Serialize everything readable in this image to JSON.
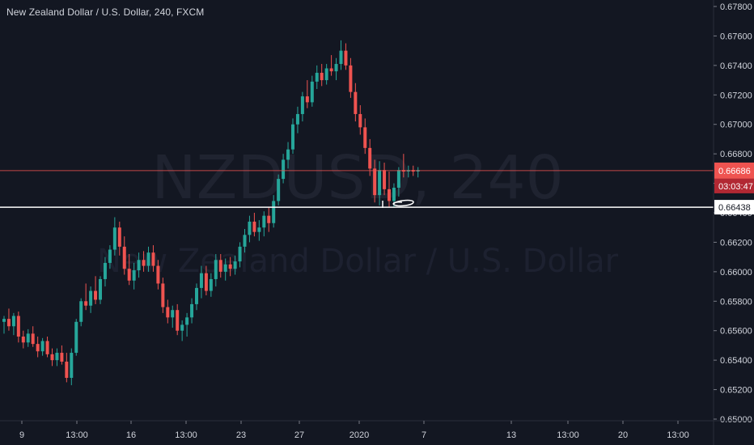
{
  "header": {
    "title": "New Zealand Dollar / U.S. Dollar, 240, FXCM"
  },
  "watermark": {
    "symbol_line": "NZDUSD, 240",
    "name_line": "New Zealand Dollar / U.S. Dollar"
  },
  "colors": {
    "background": "#131722",
    "up": "#26a69a",
    "down": "#ef5350",
    "price_line": "#ef5350",
    "level_line": "#ffffff",
    "text": "#d1d4dc"
  },
  "price_label": {
    "value": "0.66686",
    "countdown": "03:03:47"
  },
  "level_label": {
    "value": "0.66438"
  },
  "chart_data": {
    "type": "candlestick",
    "title": "New Zealand Dollar / U.S. Dollar, 240, FXCM",
    "ylim": [
      0.65,
      0.678
    ],
    "y_ticks": [
      "0.67800",
      "0.67600",
      "0.67400",
      "0.67200",
      "0.67000",
      "0.66800",
      "0.66600",
      "0.66400",
      "0.66200",
      "0.66000",
      "0.65800",
      "0.65600",
      "0.65400",
      "0.65200",
      "0.65000"
    ],
    "x_ticks": [
      "9",
      "13:00",
      "16",
      "13:00",
      "23",
      "27",
      "2020",
      "7",
      "13",
      "13:00",
      "20",
      "13:00"
    ],
    "current_price": 0.66686,
    "horizontal_level": 0.66438,
    "candles": [
      [
        0.6566,
        0.657,
        0.6558,
        0.6568
      ],
      [
        0.6568,
        0.6575,
        0.656,
        0.6563
      ],
      [
        0.6563,
        0.6572,
        0.6557,
        0.657
      ],
      [
        0.657,
        0.6573,
        0.6552,
        0.6556
      ],
      [
        0.6556,
        0.656,
        0.6548,
        0.6552
      ],
      [
        0.6552,
        0.6561,
        0.6549,
        0.6558
      ],
      [
        0.6558,
        0.6563,
        0.6549,
        0.6551
      ],
      [
        0.6551,
        0.6556,
        0.6542,
        0.6546
      ],
      [
        0.6546,
        0.6555,
        0.6543,
        0.6553
      ],
      [
        0.6553,
        0.6556,
        0.6542,
        0.6544
      ],
      [
        0.6544,
        0.6548,
        0.6536,
        0.654
      ],
      [
        0.654,
        0.6548,
        0.6536,
        0.6545
      ],
      [
        0.6545,
        0.655,
        0.6537,
        0.6539
      ],
      [
        0.6539,
        0.6545,
        0.6525,
        0.6528
      ],
      [
        0.6528,
        0.6548,
        0.6523,
        0.6545
      ],
      [
        0.6545,
        0.6568,
        0.6543,
        0.6566
      ],
      [
        0.6566,
        0.6582,
        0.6563,
        0.658
      ],
      [
        0.658,
        0.6592,
        0.6574,
        0.6577
      ],
      [
        0.6577,
        0.659,
        0.6572,
        0.6587
      ],
      [
        0.6587,
        0.6597,
        0.6578,
        0.6581
      ],
      [
        0.6581,
        0.6597,
        0.6578,
        0.6595
      ],
      [
        0.6595,
        0.661,
        0.659,
        0.6606
      ],
      [
        0.6606,
        0.6618,
        0.6602,
        0.6615
      ],
      [
        0.6615,
        0.6637,
        0.6611,
        0.663
      ],
      [
        0.663,
        0.6634,
        0.6611,
        0.6617
      ],
      [
        0.6617,
        0.6624,
        0.6598,
        0.6602
      ],
      [
        0.6602,
        0.6612,
        0.6591,
        0.6594
      ],
      [
        0.6594,
        0.6606,
        0.6588,
        0.6601
      ],
      [
        0.6601,
        0.6613,
        0.6596,
        0.6608
      ],
      [
        0.6608,
        0.6614,
        0.66,
        0.6604
      ],
      [
        0.6604,
        0.6617,
        0.66,
        0.6613
      ],
      [
        0.6613,
        0.6618,
        0.66,
        0.6604
      ],
      [
        0.6604,
        0.6608,
        0.6588,
        0.6592
      ],
      [
        0.6592,
        0.6596,
        0.6572,
        0.6576
      ],
      [
        0.6576,
        0.6581,
        0.6565,
        0.6569
      ],
      [
        0.6569,
        0.6577,
        0.6562,
        0.6574
      ],
      [
        0.6574,
        0.6578,
        0.6557,
        0.656
      ],
      [
        0.656,
        0.6567,
        0.6553,
        0.6564
      ],
      [
        0.6564,
        0.6572,
        0.6556,
        0.6569
      ],
      [
        0.6569,
        0.6582,
        0.6565,
        0.6578
      ],
      [
        0.6578,
        0.6592,
        0.6574,
        0.6589
      ],
      [
        0.6589,
        0.6604,
        0.6582,
        0.6599
      ],
      [
        0.6599,
        0.6604,
        0.6584,
        0.6587
      ],
      [
        0.6587,
        0.6599,
        0.6583,
        0.6595
      ],
      [
        0.6595,
        0.6612,
        0.659,
        0.6608
      ],
      [
        0.6608,
        0.6612,
        0.6596,
        0.66
      ],
      [
        0.66,
        0.6609,
        0.6594,
        0.6605
      ],
      [
        0.6605,
        0.661,
        0.6597,
        0.6602
      ],
      [
        0.6602,
        0.6611,
        0.6598,
        0.6607
      ],
      [
        0.6607,
        0.662,
        0.6603,
        0.6617
      ],
      [
        0.6617,
        0.6629,
        0.6613,
        0.6625
      ],
      [
        0.6625,
        0.6638,
        0.662,
        0.6634
      ],
      [
        0.6634,
        0.664,
        0.6624,
        0.6627
      ],
      [
        0.6627,
        0.6635,
        0.6621,
        0.663
      ],
      [
        0.663,
        0.6641,
        0.6624,
        0.6638
      ],
      [
        0.6638,
        0.6644,
        0.6627,
        0.6633
      ],
      [
        0.6633,
        0.6652,
        0.663,
        0.6648
      ],
      [
        0.6648,
        0.6666,
        0.6645,
        0.6663
      ],
      [
        0.6663,
        0.668,
        0.666,
        0.6676
      ],
      [
        0.6676,
        0.6688,
        0.667,
        0.6683
      ],
      [
        0.6683,
        0.6704,
        0.668,
        0.67
      ],
      [
        0.67,
        0.6712,
        0.6694,
        0.6707
      ],
      [
        0.6707,
        0.6722,
        0.6702,
        0.6719
      ],
      [
        0.6719,
        0.673,
        0.6711,
        0.6715
      ],
      [
        0.6715,
        0.6733,
        0.6712,
        0.6729
      ],
      [
        0.6729,
        0.674,
        0.6724,
        0.6735
      ],
      [
        0.6735,
        0.6741,
        0.6726,
        0.673
      ],
      [
        0.673,
        0.6741,
        0.6727,
        0.6738
      ],
      [
        0.6738,
        0.6747,
        0.6733,
        0.6736
      ],
      [
        0.6736,
        0.6745,
        0.673,
        0.6741
      ],
      [
        0.6741,
        0.6757,
        0.6737,
        0.675
      ],
      [
        0.675,
        0.6755,
        0.6737,
        0.674
      ],
      [
        0.674,
        0.6745,
        0.6718,
        0.6722
      ],
      [
        0.6722,
        0.6728,
        0.6702,
        0.6707
      ],
      [
        0.6707,
        0.6713,
        0.6693,
        0.6698
      ],
      [
        0.6698,
        0.6704,
        0.668,
        0.6684
      ],
      [
        0.6684,
        0.669,
        0.6665,
        0.667
      ],
      [
        0.667,
        0.6676,
        0.6647,
        0.6652
      ],
      [
        0.6652,
        0.6675,
        0.6645,
        0.6669
      ],
      [
        0.6669,
        0.6674,
        0.6652,
        0.6656
      ],
      [
        0.6656,
        0.6668,
        0.6644,
        0.6648
      ],
      [
        0.6648,
        0.666,
        0.6644,
        0.6657
      ],
      [
        0.6657,
        0.6671,
        0.6651,
        0.6669
      ],
      [
        0.6669,
        0.668,
        0.6664,
        0.6668
      ],
      [
        0.6668,
        0.6672,
        0.6664,
        0.6669
      ],
      [
        0.6669,
        0.6672,
        0.6665,
        0.6668
      ],
      [
        0.6668,
        0.6671,
        0.6664,
        0.6669
      ]
    ]
  }
}
